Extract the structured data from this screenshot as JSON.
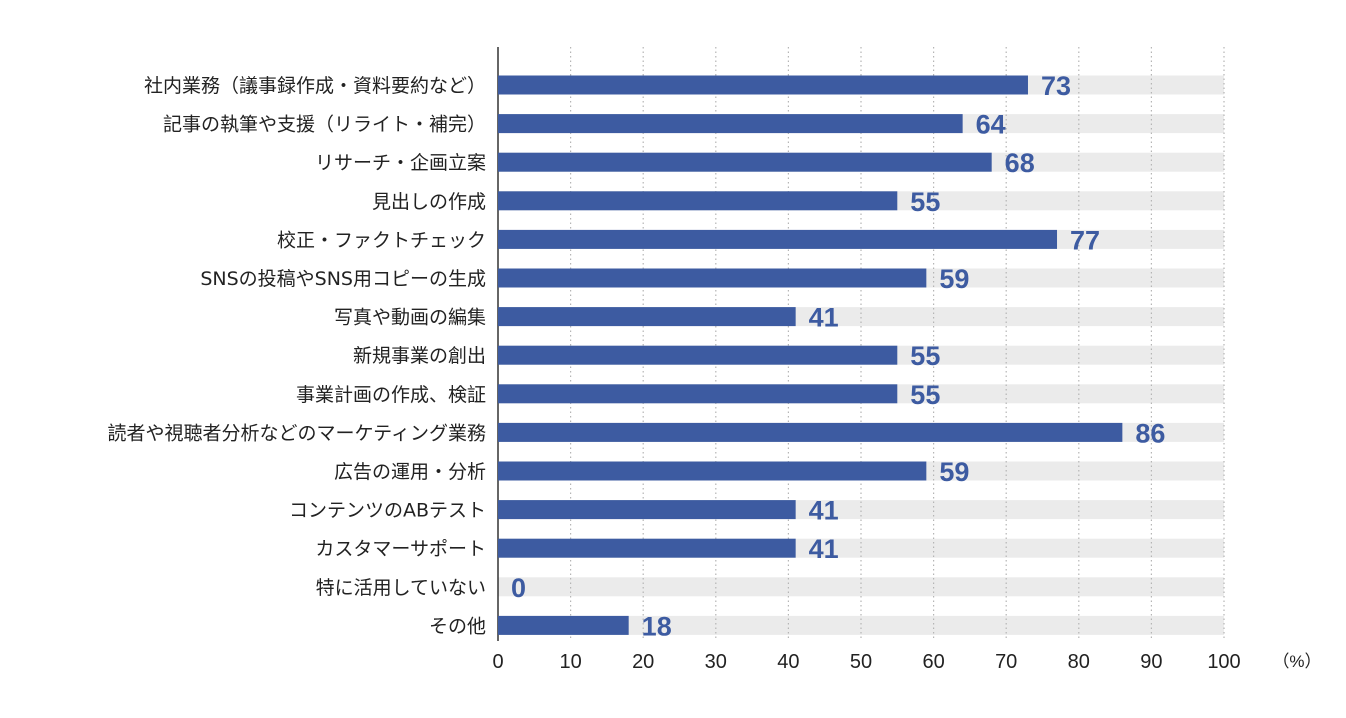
{
  "chart_data": {
    "type": "bar",
    "orientation": "horizontal",
    "categories": [
      "社内業務（議事録作成・資料要約など）",
      "記事の執筆や支援（リライト・補完）",
      "リサーチ・企画立案",
      "見出しの作成",
      "校正・ファクトチェック",
      "SNSの投稿やSNS用コピーの生成",
      "写真や動画の編集",
      "新規事業の創出",
      "事業計画の作成、検証",
      "読者や視聴者分析などのマーケティング業務",
      "広告の運用・分析",
      "コンテンツのABテスト",
      "カスタマーサポート",
      "特に活用していない",
      "その他"
    ],
    "values": [
      73,
      64,
      68,
      55,
      77,
      59,
      41,
      55,
      55,
      86,
      59,
      41,
      41,
      0,
      18
    ],
    "xlim": [
      0,
      100
    ],
    "xticks": [
      "0",
      "10",
      "20",
      "30",
      "40",
      "50",
      "60",
      "70",
      "80",
      "90",
      "100"
    ],
    "unit_label": "（%）",
    "grid": "vertical dotted",
    "colors": {
      "bar": "#3d5ba1",
      "track": "#ebebeb",
      "label": "#3d5ba1",
      "grid": "#b5b5b5",
      "axis": "#333333"
    }
  }
}
